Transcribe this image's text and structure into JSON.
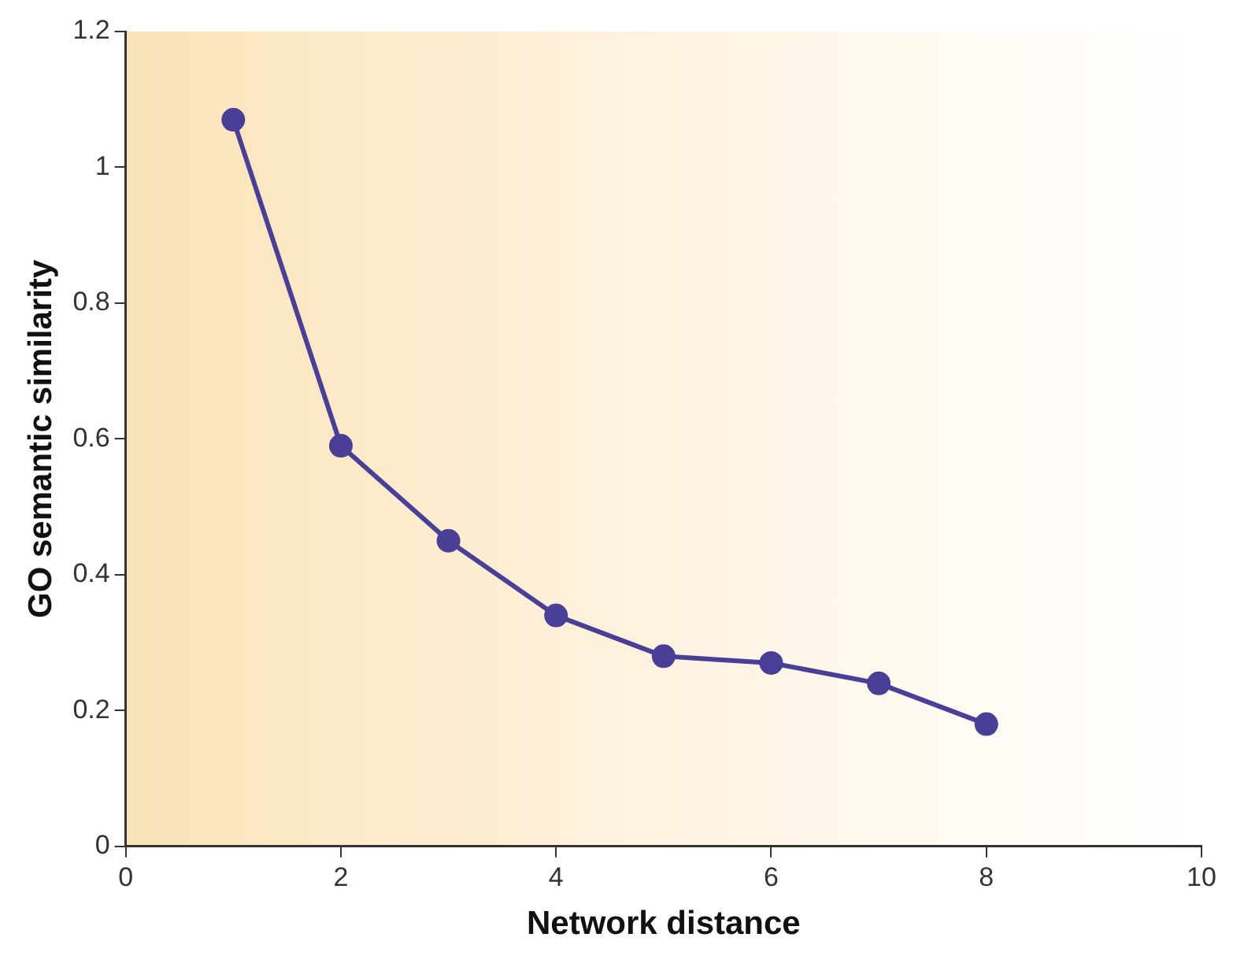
{
  "chart_data": {
    "type": "line",
    "xlabel": "Network distance",
    "ylabel": "GO semantic similarity",
    "x": [
      1,
      2,
      3,
      4,
      5,
      6,
      7,
      8
    ],
    "series": [
      {
        "color": "#4a3f96",
        "values": [
          1.07,
          0.59,
          0.45,
          0.34,
          0.28,
          0.27,
          0.24,
          0.18
        ]
      }
    ],
    "xlim": [
      0,
      10
    ],
    "xticks": [
      0,
      2,
      4,
      6,
      8,
      10
    ],
    "ylim": [
      0,
      1.2
    ],
    "yticks": [
      0,
      0.2,
      0.4,
      0.6,
      0.8,
      1,
      1.2
    ],
    "grid": false,
    "legend": false,
    "marker": "circle",
    "line_style": "solid"
  }
}
